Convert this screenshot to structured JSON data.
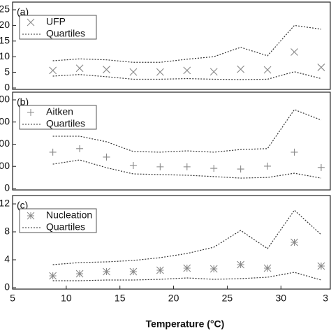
{
  "chart_data": [
    {
      "type": "line",
      "label": "(a)",
      "marker": "x",
      "color": "#888888",
      "x": [
        8.75,
        11.25,
        13.75,
        16.25,
        18.75,
        21.25,
        23.75,
        26.25,
        28.75,
        31.25,
        33.75
      ],
      "xlim": [
        5,
        34.6
      ],
      "ylim": [
        0,
        25
      ],
      "yticks": [
        0,
        5,
        10,
        15,
        20,
        25
      ],
      "series": [
        {
          "name": "UFP",
          "values": [
            5.6,
            6.3,
            5.9,
            5.1,
            5.1,
            5.6,
            5.2,
            6.0,
            5.8,
            11.5,
            6.6
          ]
        },
        {
          "name": "Quartiles",
          "upper": [
            8.7,
            9.3,
            9.0,
            8.2,
            8.2,
            9.2,
            10,
            13,
            10.3,
            20,
            18.8
          ],
          "lower": [
            3.8,
            4.3,
            3.6,
            2.8,
            2.8,
            3.0,
            2.8,
            2.7,
            2.8,
            5.2,
            3.0
          ]
        }
      ]
    },
    {
      "type": "line",
      "label": "(b)",
      "marker": "+",
      "color": "#888888",
      "x": [
        8.75,
        11.25,
        13.75,
        16.25,
        18.75,
        21.25,
        23.75,
        26.25,
        28.75,
        31.25,
        33.75
      ],
      "xlim": [
        5,
        34.6
      ],
      "ylim": [
        0,
        400
      ],
      "yticks": [
        0,
        {
          "value": 100,
          "label": "00"
        },
        {
          "value": 200,
          "label": "00"
        },
        {
          "value": 300,
          "label": "00"
        },
        {
          "value": 400,
          "label": "00"
        }
      ],
      "series": [
        {
          "name": "Aitken",
          "values": [
            164,
            180,
            142,
            104,
            98,
            98,
            91,
            88,
            101,
            164,
            95
          ]
        },
        {
          "name": "Quartiles",
          "upper": [
            236,
            236,
            211,
            167,
            164,
            170,
            164,
            176,
            180,
            356,
            309
          ],
          "lower": [
            110,
            129,
            94,
            66,
            63,
            60,
            54,
            47,
            50,
            69,
            47
          ]
        }
      ]
    },
    {
      "type": "line",
      "label": "(c)",
      "marker": "*",
      "color": "#888888",
      "x": [
        8.75,
        11.25,
        13.75,
        16.25,
        18.75,
        21.25,
        23.75,
        26.25,
        28.75,
        31.25,
        33.75
      ],
      "xlim": [
        5,
        34.6
      ],
      "ylim": [
        0,
        12
      ],
      "yticks": [
        0,
        4,
        8,
        12
      ],
      "xticks": [
        5,
        10,
        15,
        20,
        25,
        30,
        {
          "value": 35,
          "label": "3"
        }
      ],
      "x_label": "Temperature (°C)",
      "series": [
        {
          "name": "Nucleation",
          "values": [
            1.7,
            2.0,
            2.3,
            2.3,
            2.5,
            2.8,
            2.7,
            3.3,
            2.8,
            6.5,
            3.1
          ]
        },
        {
          "name": "Quartiles",
          "upper": [
            3.3,
            3.6,
            3.7,
            3.9,
            4.3,
            4.9,
            5.8,
            8.2,
            5.6,
            11.1,
            7.6
          ],
          "lower": [
            1.0,
            1.0,
            1.1,
            1.1,
            1.2,
            1.4,
            1.2,
            1.3,
            1.5,
            2.2,
            1.1
          ]
        }
      ]
    }
  ]
}
